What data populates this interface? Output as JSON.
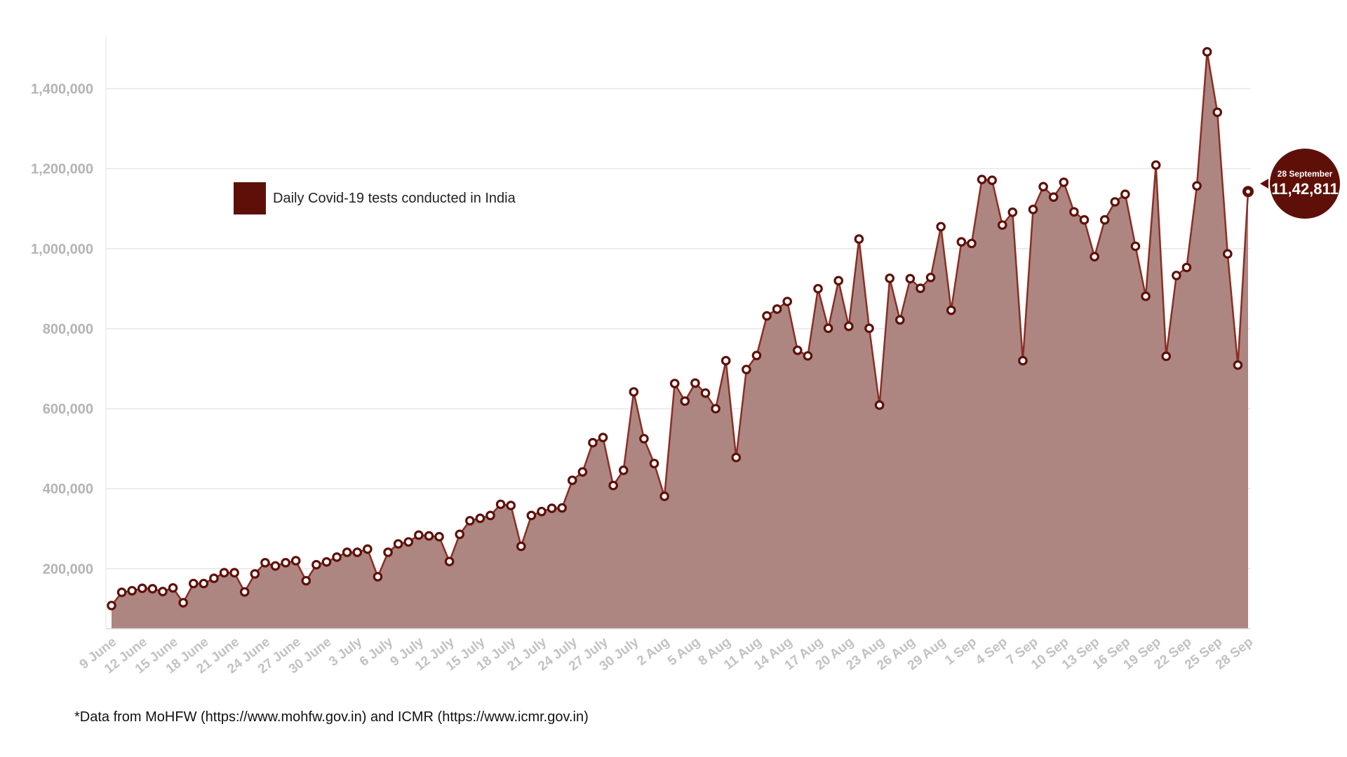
{
  "colors": {
    "accent": "#5e1008",
    "area_fill": "#ad8681",
    "line": "#8a2e24",
    "marker_fill": "#ffffff"
  },
  "legend": {
    "label": "Daily Covid-19 tests conducted in India"
  },
  "source_note": "*Data from MoHFW (https://www.mohfw.gov.in) and ICMR (https://www.icmr.gov.in)",
  "callout": {
    "date": "28 September",
    "value": "11,42,811"
  },
  "chart_data": {
    "type": "area",
    "title": "",
    "xlabel": "",
    "ylabel": "",
    "ylim": [
      50000,
      1520000
    ],
    "y_ticks": [
      200000,
      400000,
      600000,
      800000,
      1000000,
      1200000,
      1400000
    ],
    "y_tick_labels": [
      "200,000",
      "400,000",
      "600,000",
      "800,000",
      "1,000,000",
      "1,200,000",
      "1,400,000"
    ],
    "grid": true,
    "legend_position": "top-left",
    "x_tick_labels": [
      "9 June",
      "12 June",
      "15 June",
      "18 June",
      "21 June",
      "24 June",
      "27 June",
      "30 June",
      "3 July",
      "6 July",
      "9 July",
      "12 July",
      "15 July",
      "18 July",
      "21 July",
      "24 July",
      "27 July",
      "30 July",
      "2 Aug",
      "5 Aug",
      "8 Aug",
      "11 Aug",
      "14 Aug",
      "17 Aug",
      "20 Aug",
      "23 Aug",
      "26 Aug",
      "29 Aug",
      "1 Sep",
      "4 Sep",
      "7 Sep",
      "10 Sep",
      "13 Sep",
      "16 Sep",
      "19 Sep",
      "22 Sep",
      "25 Sep",
      "28 Sep"
    ],
    "start_date": "9 June",
    "series": [
      {
        "name": "Daily Covid-19 tests conducted in India",
        "values": [
          108000,
          141000,
          145000,
          151000,
          150000,
          143000,
          152000,
          115000,
          163000,
          163000,
          176000,
          190000,
          190000,
          142000,
          187000,
          215000,
          207000,
          215000,
          220000,
          170000,
          210000,
          217000,
          229000,
          241000,
          241000,
          249000,
          180000,
          241000,
          262000,
          267000,
          284000,
          282000,
          280000,
          218000,
          286000,
          320000,
          326000,
          333000,
          361000,
          358000,
          256000,
          333000,
          343000,
          351000,
          352000,
          421000,
          442000,
          515000,
          528000,
          408000,
          446000,
          642000,
          525000,
          463000,
          381000,
          663000,
          619000,
          664000,
          639000,
          600000,
          720000,
          478000,
          698000,
          733000,
          832000,
          849000,
          868000,
          746000,
          732000,
          900000,
          801000,
          920000,
          806000,
          1024000,
          801000,
          609000,
          926000,
          822000,
          925000,
          901000,
          928000,
          1055000,
          846000,
          1017000,
          1013000,
          1173000,
          1171000,
          1059000,
          1091000,
          720000,
          1098000,
          1155000,
          1129000,
          1166000,
          1092000,
          1072000,
          980000,
          1072000,
          1117000,
          1136000,
          1006000,
          881000,
          1209000,
          731000,
          933000,
          953000,
          1157000,
          1492000,
          1341000,
          987000,
          709000,
          1142811
        ]
      }
    ]
  }
}
